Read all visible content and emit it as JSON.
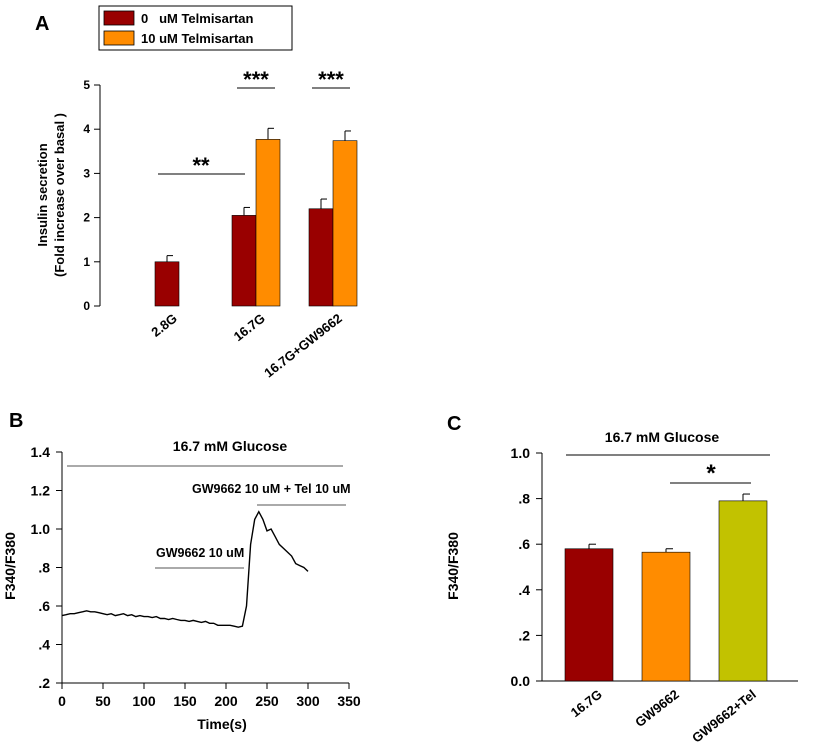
{
  "chart_data": [
    {
      "panel": "A",
      "type": "bar",
      "ylabel_line1": "Insulin secretion",
      "ylabel_line2": "(Fold  increase over basal )",
      "ylim": [
        0,
        5
      ],
      "yticks": [
        "0",
        "1",
        "2",
        "3",
        "4",
        "5"
      ],
      "categories": [
        "2.8G",
        "16.7G",
        "16.7G+GW9662"
      ],
      "series": [
        {
          "name": "0   uM Telmisartan",
          "color": "#990000",
          "values": [
            1.0,
            2.05,
            2.2
          ],
          "errors": [
            0.14,
            0.18,
            0.22
          ]
        },
        {
          "name": "10 uM Telmisartan",
          "color": "#ff8c00",
          "values": [
            null,
            3.77,
            3.74
          ],
          "errors": [
            null,
            0.25,
            0.22
          ]
        }
      ],
      "significance": [
        "**",
        "***",
        "***"
      ]
    },
    {
      "panel": "B",
      "type": "line",
      "title": "16.7 mM  Glucose",
      "xlabel": "Time(s)",
      "ylabel": "F340/F380",
      "xlim": [
        0,
        350
      ],
      "ylim": [
        0.2,
        1.4
      ],
      "xticks": [
        "0",
        "50",
        "100",
        "150",
        "200",
        "250",
        "300",
        "350"
      ],
      "yticks": [
        ".2",
        ".4",
        ".6",
        ".8",
        "1.0",
        "1.2",
        "1.4"
      ],
      "annotation_gw": "GW9662 10 uM",
      "annotation_tel": "GW9662 10 uM + Tel 10 uM",
      "x": [
        0,
        5,
        10,
        15,
        20,
        25,
        30,
        35,
        40,
        45,
        50,
        55,
        60,
        65,
        70,
        75,
        80,
        85,
        90,
        95,
        100,
        105,
        110,
        115,
        120,
        125,
        130,
        135,
        140,
        145,
        150,
        155,
        160,
        165,
        170,
        175,
        180,
        185,
        190,
        195,
        200,
        205,
        210,
        215,
        220,
        225,
        230,
        235,
        240,
        245,
        250,
        255,
        260,
        265,
        270,
        275,
        280,
        285,
        290,
        295,
        300
      ],
      "y": [
        0.55,
        0.555,
        0.56,
        0.56,
        0.565,
        0.57,
        0.575,
        0.57,
        0.57,
        0.565,
        0.56,
        0.555,
        0.56,
        0.55,
        0.555,
        0.56,
        0.55,
        0.555,
        0.545,
        0.55,
        0.545,
        0.545,
        0.54,
        0.545,
        0.535,
        0.535,
        0.53,
        0.535,
        0.53,
        0.525,
        0.525,
        0.52,
        0.525,
        0.52,
        0.515,
        0.52,
        0.51,
        0.51,
        0.5,
        0.5,
        0.5,
        0.5,
        0.495,
        0.49,
        0.495,
        0.6,
        0.92,
        1.05,
        1.09,
        1.05,
        0.99,
        1.0,
        0.96,
        0.92,
        0.9,
        0.88,
        0.86,
        0.82,
        0.81,
        0.8,
        0.78
      ]
    },
    {
      "panel": "C",
      "type": "bar",
      "title": "16.7 mM  Glucose",
      "ylabel": "F340/F380",
      "ylim": [
        0.0,
        1.0
      ],
      "yticks": [
        "0.0",
        ".2",
        ".4",
        ".6",
        ".8",
        "1.0"
      ],
      "categories": [
        "16.7G",
        "GW9662",
        "GW9662+Tel"
      ],
      "values": [
        0.58,
        0.565,
        0.79
      ],
      "errors": [
        0.02,
        0.015,
        0.03
      ],
      "colors": [
        "#990000",
        "#ff8c00",
        "#c2c200"
      ],
      "significance": "*"
    }
  ],
  "panel_labels": [
    "A",
    "B",
    "C"
  ]
}
